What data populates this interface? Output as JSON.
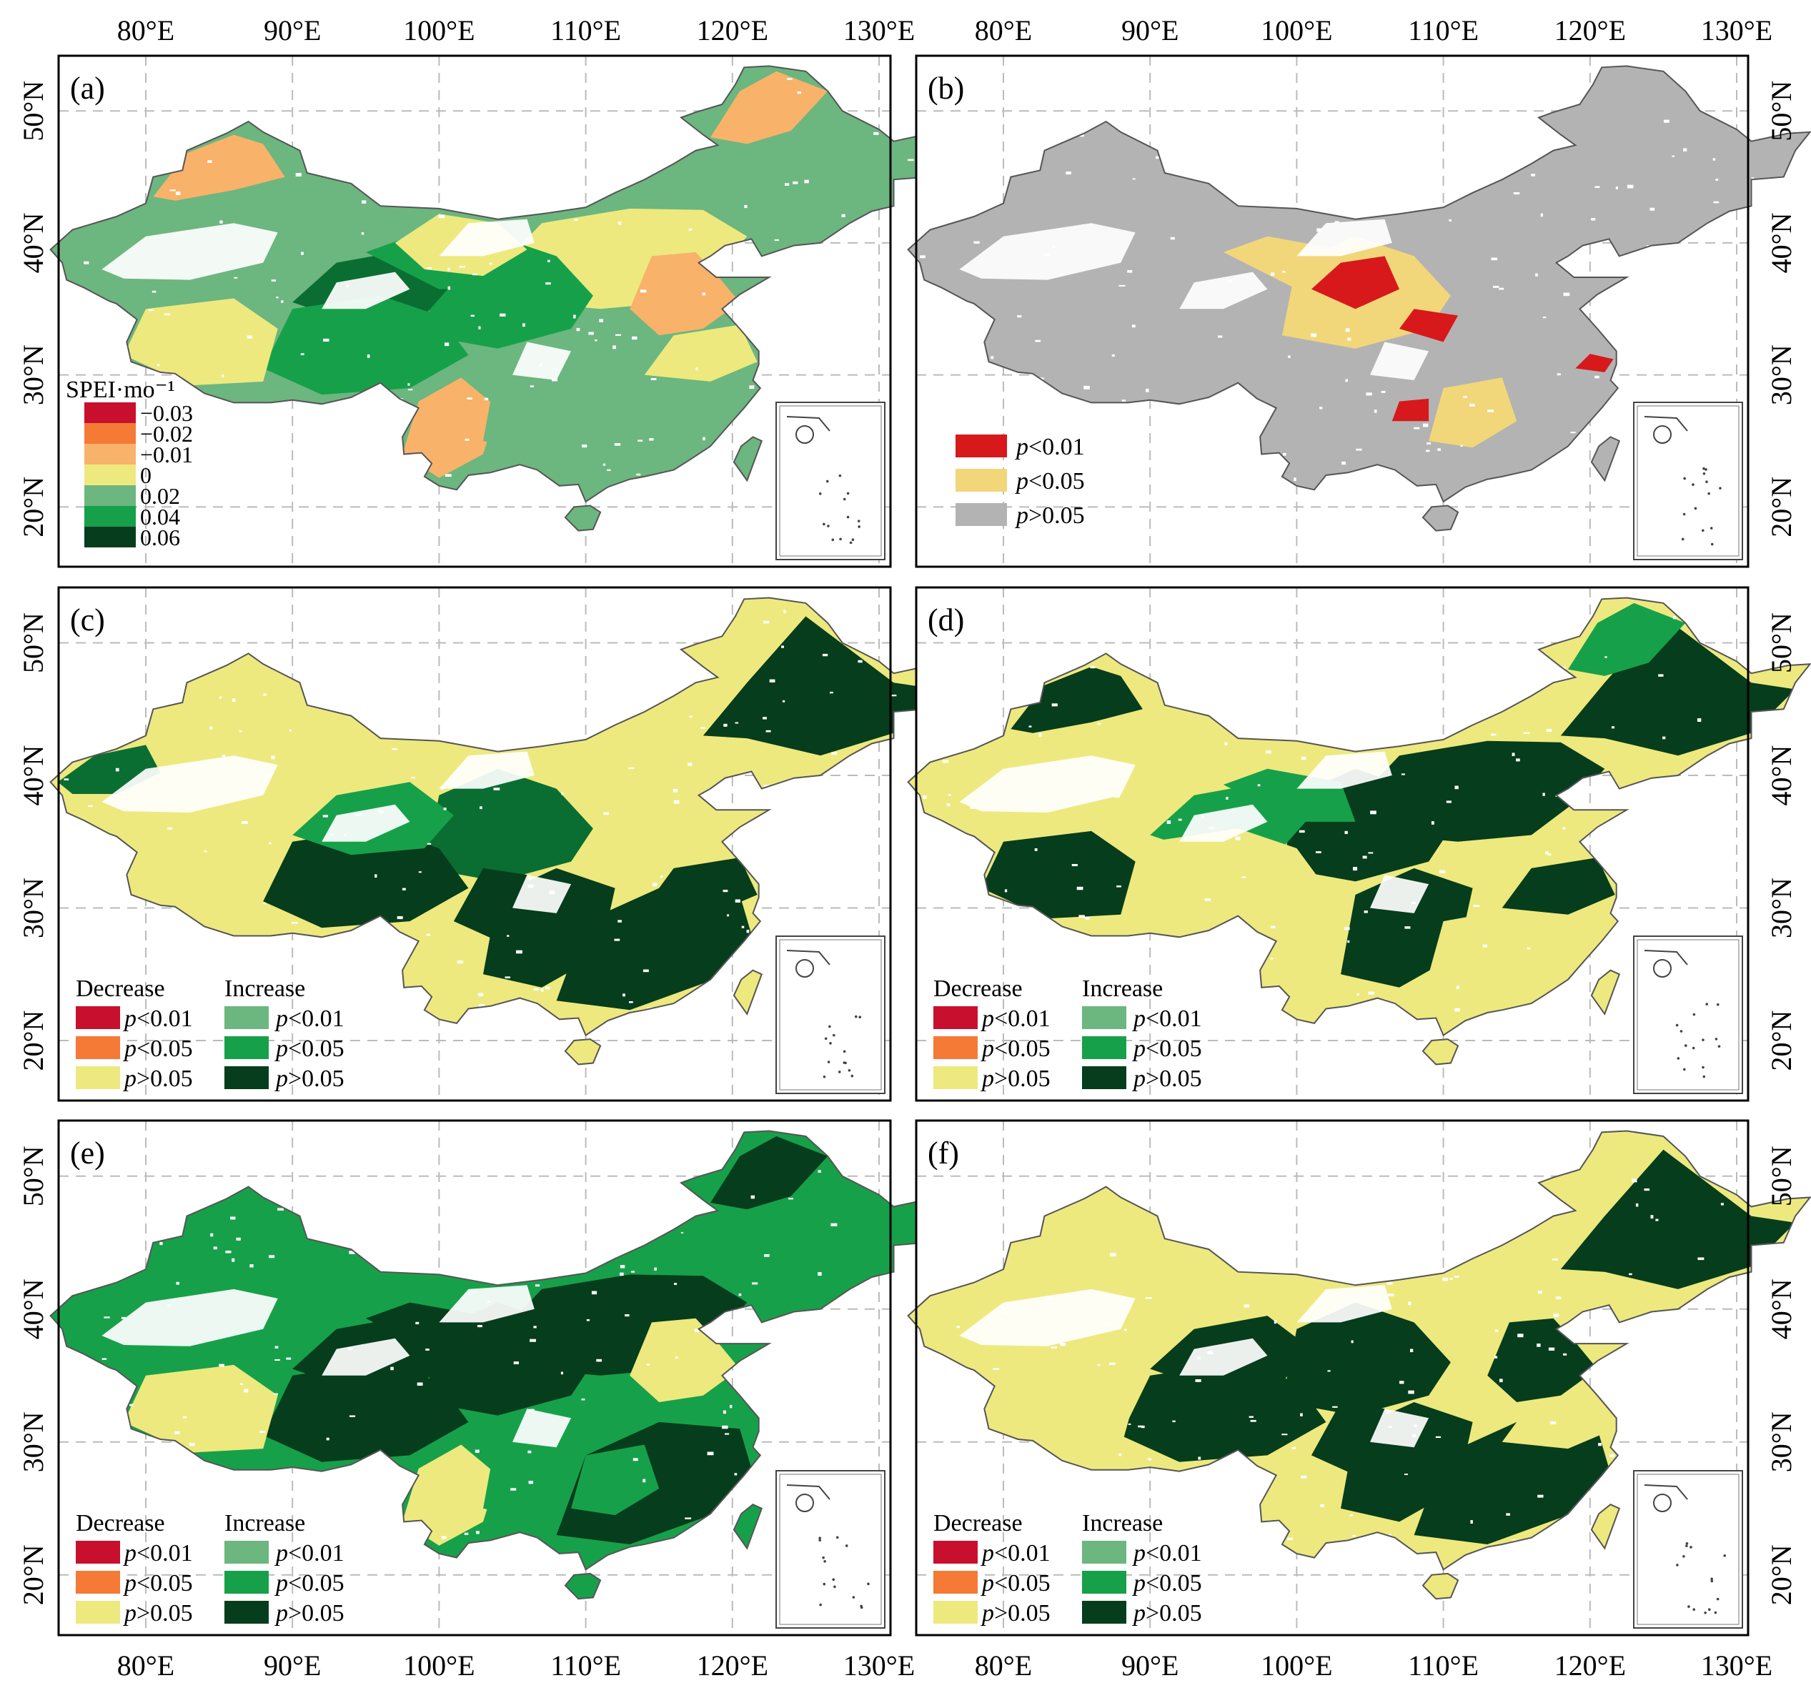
{
  "figure": {
    "top_lon_labels": [
      "80°E",
      "90°E",
      "100°E",
      "110°E",
      "120°E",
      "130°E"
    ],
    "bottom_lon_labels": [
      "80°E",
      "90°E",
      "100°E",
      "110°E",
      "120°E",
      "130°E"
    ],
    "left_lat_labels": [
      "50°N",
      "40°N",
      "30°N",
      "20°N"
    ],
    "right_lat_labels": [
      "50°N",
      "40°N",
      "30°N",
      "20°N"
    ]
  },
  "colors": {
    "neg3": "#c8102e",
    "neg2": "#f47a36",
    "neg1": "#f8b26a",
    "zero": "#ede97f",
    "pos1": "#6cb67f",
    "pos2": "#17a04a",
    "pos3": "#0a6e32",
    "pos4": "#063d1c",
    "sig01": "#d7191c",
    "sig05": "#f2d77a",
    "nonsig": "#b3b3b3",
    "frame": "#000000",
    "grid": "#bbbbbb",
    "background": "#ffffff"
  },
  "panels": [
    {
      "label": "(a)",
      "legend_type": "slope",
      "legend": {
        "title": "SPEI·mo⁻¹",
        "items": [
          {
            "label": "−0.03",
            "color": "neg3"
          },
          {
            "label": "−0.02",
            "color": "neg2"
          },
          {
            "label": "−0.01",
            "color": "neg1"
          },
          {
            "label": "0",
            "color": "zero"
          },
          {
            "label": "0.02",
            "color": "pos1"
          },
          {
            "label": "0.04",
            "color": "pos2"
          },
          {
            "label": "0.06",
            "color": "pos4"
          }
        ]
      }
    },
    {
      "label": "(b)",
      "legend_type": "significance",
      "legend": {
        "items": [
          {
            "label": "p<0.01",
            "color": "sig01"
          },
          {
            "label": "p<0.05",
            "color": "sig05"
          },
          {
            "label": "p>0.05",
            "color": "nonsig"
          }
        ]
      }
    },
    {
      "label": "(c)",
      "legend_type": "trend",
      "legend": {
        "decrease_title": "Decrease",
        "increase_title": "Increase",
        "decrease": [
          {
            "label": "p<0.01",
            "color": "neg3"
          },
          {
            "label": "p<0.05",
            "color": "neg2"
          },
          {
            "label": "p>0.05",
            "color": "zero"
          }
        ],
        "increase": [
          {
            "label": "p<0.01",
            "color": "pos1"
          },
          {
            "label": "p<0.05",
            "color": "pos2"
          },
          {
            "label": "p>0.05",
            "color": "pos4"
          }
        ]
      }
    },
    {
      "label": "(d)",
      "legend_type": "trend",
      "legend": {
        "decrease_title": "Decrease",
        "increase_title": "Increase",
        "decrease": [
          {
            "label": "p<0.01",
            "color": "neg3"
          },
          {
            "label": "p<0.05",
            "color": "neg2"
          },
          {
            "label": "p>0.05",
            "color": "zero"
          }
        ],
        "increase": [
          {
            "label": "p<0.01",
            "color": "pos1"
          },
          {
            "label": "p<0.05",
            "color": "pos2"
          },
          {
            "label": "p>0.05",
            "color": "pos4"
          }
        ]
      }
    },
    {
      "label": "(e)",
      "legend_type": "trend",
      "legend": {
        "decrease_title": "Decrease",
        "increase_title": "Increase",
        "decrease": [
          {
            "label": "p<0.01",
            "color": "neg3"
          },
          {
            "label": "p<0.05",
            "color": "neg2"
          },
          {
            "label": "p>0.05",
            "color": "zero"
          }
        ],
        "increase": [
          {
            "label": "p<0.01",
            "color": "pos1"
          },
          {
            "label": "p<0.05",
            "color": "pos2"
          },
          {
            "label": "p>0.05",
            "color": "pos4"
          }
        ]
      }
    },
    {
      "label": "(f)",
      "legend_type": "trend",
      "legend": {
        "decrease_title": "Decrease",
        "increase_title": "Increase",
        "decrease": [
          {
            "label": "p<0.01",
            "color": "neg3"
          },
          {
            "label": "p<0.05",
            "color": "neg2"
          },
          {
            "label": "p>0.05",
            "color": "zero"
          }
        ],
        "increase": [
          {
            "label": "p<0.01",
            "color": "pos1"
          },
          {
            "label": "p<0.05",
            "color": "pos2"
          },
          {
            "label": "p>0.05",
            "color": "pos4"
          }
        ]
      }
    }
  ]
}
